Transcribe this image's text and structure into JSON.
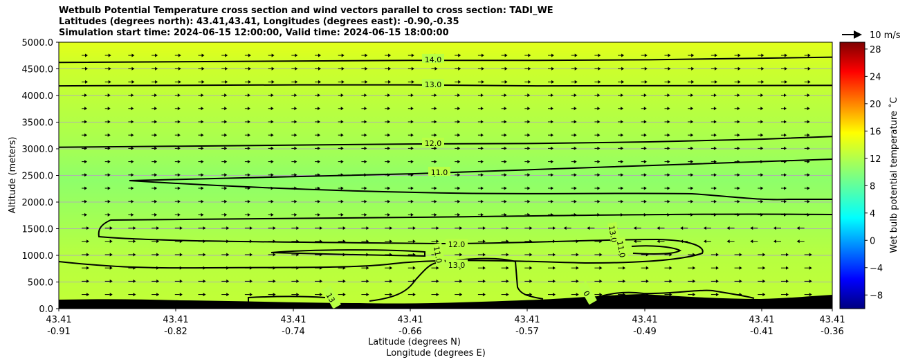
{
  "titles": [
    "Wetbulb Potential Temperature cross section and wind vectors parallel to cross section: TADI_WE",
    "Latitudes (degrees north): 43.41,43.41, Longitudes (degrees east): -0.90,-0.35",
    "Simulation start time: 2024-06-15 12:00:00, Valid time: 2024-06-15 18:00:00"
  ],
  "chart_data": {
    "type": "heatmap",
    "title": "Wetbulb Potential Temperature cross section and wind vectors parallel to cross section: TADI_WE",
    "ylabel": "Altitude (meters)",
    "xlabel": "Latitude (degrees N)",
    "xlabel2": "Longitude (degrees E)",
    "ylim": [
      0,
      5000
    ],
    "y_ticks": [
      "0.0",
      "500.0",
      "1000.0",
      "1500.0",
      "2000.0",
      "2500.0",
      "3000.0",
      "3500.0",
      "4000.0",
      "4500.0",
      "5000.0"
    ],
    "x_ticks": [
      {
        "lat": "43.41",
        "lon": "-0.91"
      },
      {
        "lat": "43.41",
        "lon": "-0.82"
      },
      {
        "lat": "43.41",
        "lon": "-0.74"
      },
      {
        "lat": "43.41",
        "lon": "-0.66"
      },
      {
        "lat": "43.41",
        "lon": "-0.57"
      },
      {
        "lat": "43.41",
        "lon": "-0.49"
      },
      {
        "lat": "43.41",
        "lon": "-0.41"
      },
      {
        "lat": "43.41",
        "lon": "-0.36"
      }
    ],
    "grid": "horizontal",
    "colorbar": {
      "label": "Wet bulb potential temperature  ˚C",
      "min": -10,
      "max": 29,
      "ticks": [
        "−8",
        "−4",
        "0",
        "4",
        "8",
        "12",
        "16",
        "20",
        "24",
        "28"
      ],
      "colormap": "jet"
    },
    "quiver_key": "10 m/s",
    "contour_labels": [
      "14.0",
      "13.0",
      "12.0",
      "11.0",
      "12.0",
      "13.0",
      "11.0",
      "13.0",
      "11.0",
      "13",
      "0"
    ],
    "contours": [
      {
        "level": 14,
        "x": [
          -0.91,
          -0.66,
          -0.57,
          -0.49,
          -0.41,
          -0.36
        ],
        "y": [
          4620,
          4660,
          4660,
          4670,
          4700,
          4720
        ]
      },
      {
        "level": 13,
        "x": [
          -0.91,
          -0.74,
          -0.66,
          -0.57,
          -0.36
        ],
        "y": [
          4180,
          4200,
          4200,
          4180,
          4190
        ]
      },
      {
        "level": 12,
        "x": [
          -0.91,
          -0.82,
          -0.74,
          -0.66,
          -0.57,
          -0.49,
          -0.41,
          -0.36
        ],
        "y": [
          3030,
          3050,
          3070,
          3090,
          3100,
          3130,
          3180,
          3230
        ]
      }
    ]
  },
  "colors": {
    "background_field": "#c3ff34",
    "mid_field": "#96ff62",
    "terrain": "#000000",
    "grid": "#b0b0b0"
  }
}
